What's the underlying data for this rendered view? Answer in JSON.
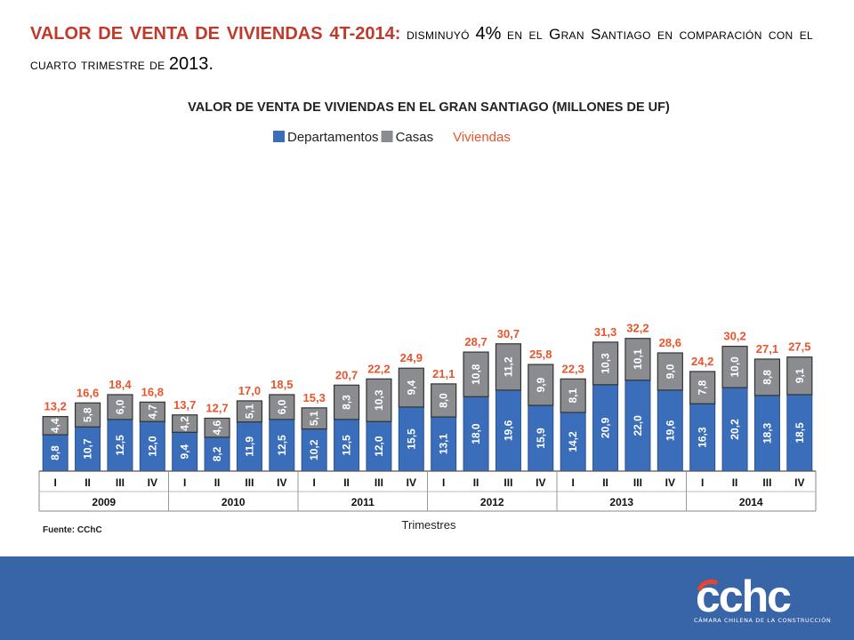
{
  "headline": {
    "main": "VALOR DE VENTA DE VIVIENDAS 4T-2014:",
    "w1": "disminuyó",
    "pct": "4%",
    "w2": "en el Gran Santiago en comparación con el cuarto trimestre de",
    "year": "2013",
    "end": "."
  },
  "source": "Fuente: CChC",
  "logo": {
    "text": "cchc",
    "subtitle": "CÁMARA CHILENA DE LA CONSTRUCCIÓN"
  },
  "colors": {
    "departamentos": "#3a6ebb",
    "casas": "#8a8c8f",
    "total_label": "#e8552c",
    "footer": "#3864a8"
  },
  "chart_data": {
    "type": "bar",
    "stacked": true,
    "title": "VALOR DE VENTA DE VIVIENDAS EN EL GRAN SANTIAGO (MILLONES DE UF)",
    "xlabel": "Trimestres",
    "ylabel": "",
    "legend": [
      "Departamentos",
      "Casas",
      "Viviendas"
    ],
    "legend_position": "top-center",
    "quarters": [
      "I",
      "II",
      "III",
      "IV"
    ],
    "years": [
      "2009",
      "2010",
      "2011",
      "2012",
      "2013",
      "2014"
    ],
    "series": [
      {
        "name": "Departamentos",
        "values": [
          "8,8",
          "10,7",
          "12,5",
          "12,0",
          "9,4",
          "8,2",
          "11,9",
          "12,5",
          "10,2",
          "12,5",
          "12,0",
          "15,5",
          "13,1",
          "18,0",
          "19,6",
          "15,9",
          "14,2",
          "20,9",
          "22,0",
          "19,6",
          "16,3",
          "20,2",
          "18,3",
          "18,5"
        ]
      },
      {
        "name": "Casas",
        "values": [
          "4,4",
          "5,8",
          "6,0",
          "4,7",
          "4,2",
          "4,6",
          "5,1",
          "6,0",
          "5,1",
          "8,3",
          "10,3",
          "9,4",
          "8,0",
          "10,8",
          "11,2",
          "9,9",
          "8,1",
          "10,3",
          "10,1",
          "9,0",
          "7,8",
          "10,0",
          "8,8",
          "9,1"
        ]
      },
      {
        "name": "Viviendas",
        "values": [
          "13,2",
          "16,6",
          "18,4",
          "16,8",
          "13,7",
          "12,7",
          "17,0",
          "18,5",
          "15,3",
          "20,7",
          "22,2",
          "24,9",
          "21,1",
          "28,7",
          "30,7",
          "25,8",
          "22,3",
          "31,3",
          "32,2",
          "28,6",
          "24,2",
          "30,2",
          "27,1",
          "27,5"
        ]
      }
    ],
    "ylim": [
      0,
      38
    ]
  }
}
